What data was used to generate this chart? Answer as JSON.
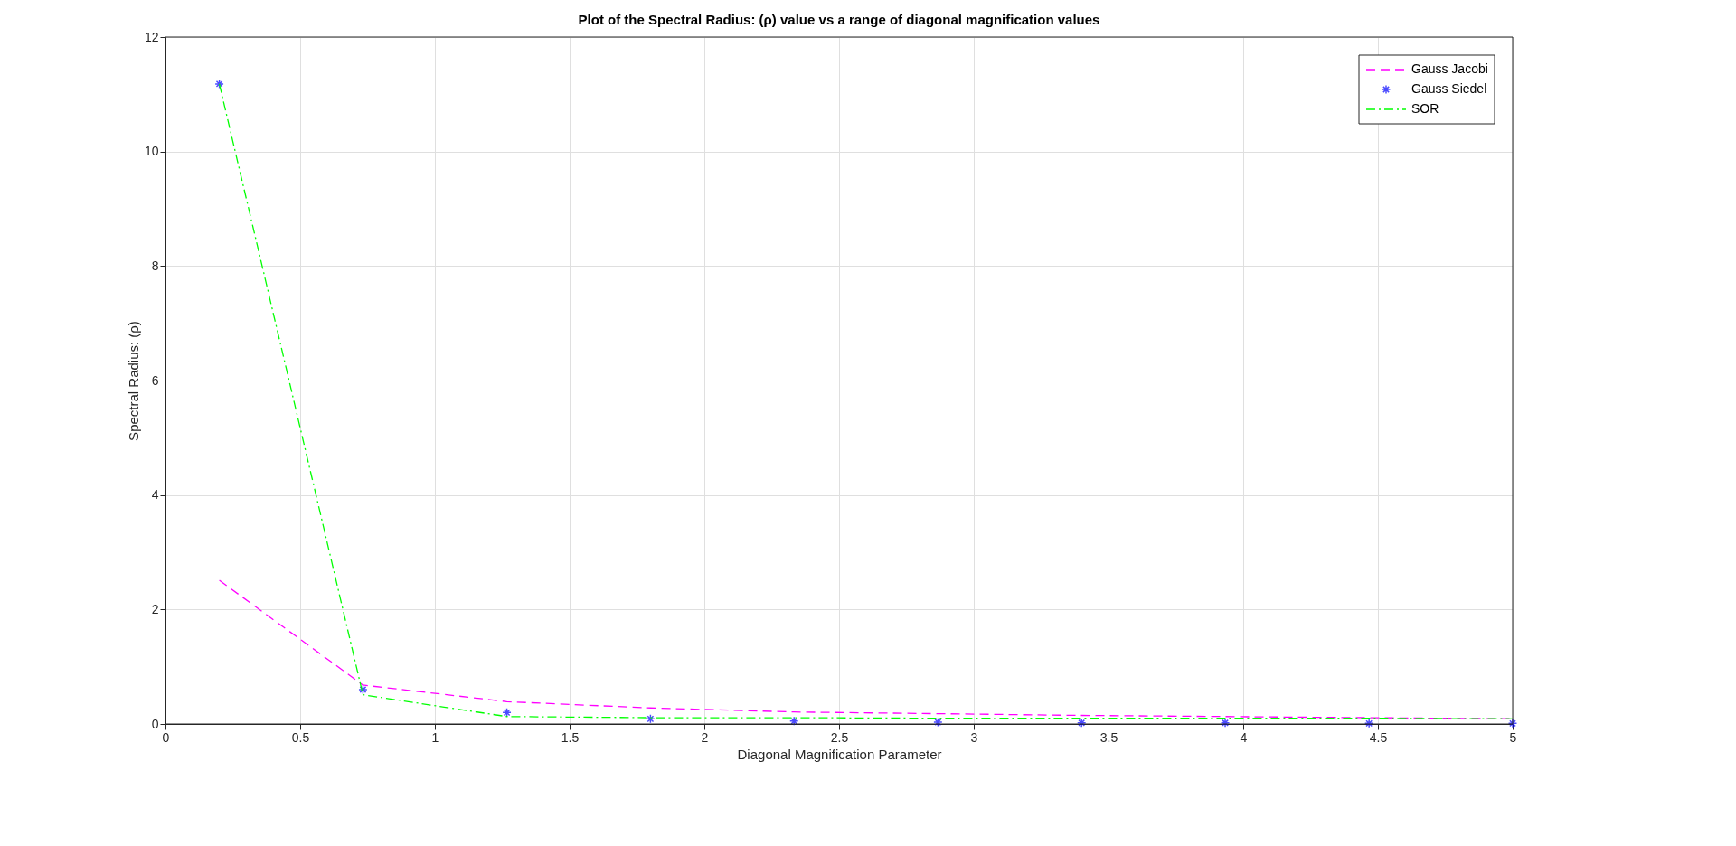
{
  "chart_data": {
    "type": "line",
    "title": "Plot of the Spectral Radius: (ρ) value vs a range of diagonal magnification values",
    "xlabel": "Diagonal Magnification Parameter",
    "ylabel": "Spectral Radius: (ρ)",
    "x": [
      0.2,
      0.733,
      1.267,
      1.8,
      2.333,
      2.867,
      3.4,
      3.933,
      4.467,
      5.0
    ],
    "series": [
      {
        "name": "Gauss Jacobi",
        "color": "#ff00ff",
        "line_style": "dashed",
        "marker": "none",
        "values": [
          2.51,
          0.68,
          0.39,
          0.28,
          0.21,
          0.18,
          0.15,
          0.13,
          0.11,
          0.09
        ]
      },
      {
        "name": "Gauss Siedel",
        "type": "scatter",
        "color": "#0000ff",
        "marker": "cross",
        "values": [
          11.18,
          0.6,
          0.2,
          0.09,
          0.05,
          0.03,
          0.02,
          0.02,
          0.01,
          0.01
        ]
      },
      {
        "name": "SOR",
        "color": "#00ff00",
        "line_style": "dashdot",
        "marker": "none",
        "values": [
          11.18,
          0.51,
          0.13,
          0.11,
          0.11,
          0.1,
          0.1,
          0.1,
          0.1,
          0.09
        ]
      }
    ],
    "xlim": [
      0,
      5
    ],
    "ylim": [
      0,
      12
    ],
    "xticks": [
      0,
      0.5,
      1,
      1.5,
      2,
      2.5,
      3,
      3.5,
      4,
      4.5,
      5
    ],
    "yticks": [
      0,
      2,
      4,
      6,
      8,
      10,
      12
    ],
    "grid": true,
    "legend": "top right"
  }
}
